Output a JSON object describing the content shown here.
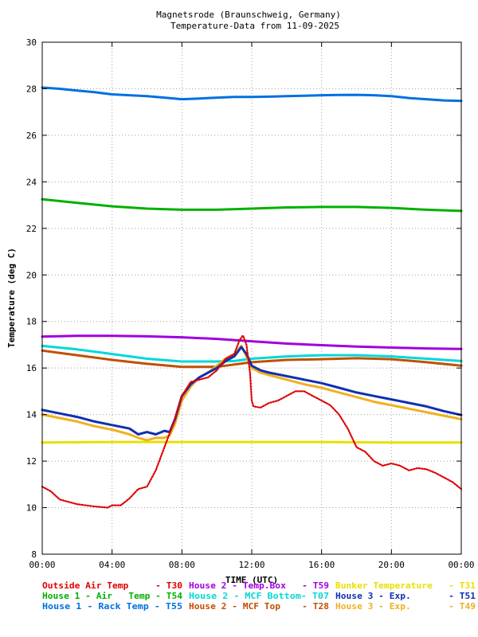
{
  "chart_data": {
    "type": "line",
    "title": "Magnetsrode (Braunschweig, Germany)",
    "subtitle": "Temperature-Data from 11-09-2025",
    "xlabel": "TIME (UTC)",
    "ylabel": "Temperature (deg C)",
    "xlim": [
      0,
      24
    ],
    "ylim": [
      8,
      30
    ],
    "x_ticks": [
      0,
      4,
      8,
      12,
      16,
      20,
      24
    ],
    "x_tick_labels": [
      "00:00",
      "04:00",
      "08:00",
      "12:00",
      "16:00",
      "20:00",
      "00:00"
    ],
    "y_ticks": [
      8,
      10,
      12,
      14,
      16,
      18,
      20,
      22,
      24,
      26,
      28,
      30
    ],
    "y_tick_labels": [
      "8",
      "10",
      "12",
      "14",
      "16",
      "18",
      "20",
      "22",
      "24",
      "26",
      "28",
      "30"
    ],
    "grid": true,
    "legend_position": "bottom",
    "series": [
      {
        "name": "Outside Air Temp",
        "id": "T30",
        "color": "#e00000",
        "dot": true,
        "points": [
          [
            0,
            10.9
          ],
          [
            0.5,
            10.7
          ],
          [
            1,
            10.35
          ],
          [
            2,
            10.15
          ],
          [
            3,
            10.05
          ],
          [
            3.75,
            10.0
          ],
          [
            4,
            10.1
          ],
          [
            4.5,
            10.1
          ],
          [
            5,
            10.4
          ],
          [
            5.5,
            10.8
          ],
          [
            6,
            10.9
          ],
          [
            6.5,
            11.6
          ],
          [
            7,
            12.6
          ],
          [
            7.5,
            13.6
          ],
          [
            8,
            14.8
          ],
          [
            8.5,
            15.4
          ],
          [
            9,
            15.5
          ],
          [
            9.5,
            15.6
          ],
          [
            10,
            15.9
          ],
          [
            10.5,
            16.4
          ],
          [
            11,
            16.6
          ],
          [
            11.3,
            17.2
          ],
          [
            11.5,
            17.4
          ],
          [
            11.7,
            17.0
          ],
          [
            11.9,
            15.8
          ],
          [
            12.0,
            14.6
          ],
          [
            12.1,
            14.35
          ],
          [
            12.5,
            14.3
          ],
          [
            13,
            14.5
          ],
          [
            13.5,
            14.6
          ],
          [
            14,
            14.8
          ],
          [
            14.5,
            15.0
          ],
          [
            15,
            15.0
          ],
          [
            15.5,
            14.8
          ],
          [
            16,
            14.6
          ],
          [
            16.5,
            14.4
          ],
          [
            17,
            14.0
          ],
          [
            17.5,
            13.4
          ],
          [
            18,
            12.6
          ],
          [
            18.5,
            12.4
          ],
          [
            19,
            12.0
          ],
          [
            19.5,
            11.8
          ],
          [
            20,
            11.9
          ],
          [
            20.5,
            11.8
          ],
          [
            21,
            11.6
          ],
          [
            21.5,
            11.7
          ],
          [
            22,
            11.65
          ],
          [
            22.5,
            11.5
          ],
          [
            23,
            11.3
          ],
          [
            23.5,
            11.1
          ],
          [
            24,
            10.8
          ]
        ]
      },
      {
        "name": "House 1 - Air  Temp",
        "id": "T54",
        "color": "#00b000",
        "dot": false,
        "points": [
          [
            0,
            23.25
          ],
          [
            2,
            23.1
          ],
          [
            4,
            22.95
          ],
          [
            6,
            22.85
          ],
          [
            8,
            22.8
          ],
          [
            10,
            22.8
          ],
          [
            12,
            22.85
          ],
          [
            14,
            22.9
          ],
          [
            16,
            22.92
          ],
          [
            18,
            22.92
          ],
          [
            20,
            22.88
          ],
          [
            22,
            22.8
          ],
          [
            24,
            22.75
          ]
        ]
      },
      {
        "name": "House 1 - Rack Temp",
        "id": "T55",
        "color": "#0070e0",
        "dot": false,
        "points": [
          [
            0,
            28.05
          ],
          [
            1,
            28.0
          ],
          [
            2,
            27.92
          ],
          [
            3,
            27.85
          ],
          [
            4,
            27.76
          ],
          [
            5,
            27.72
          ],
          [
            6,
            27.68
          ],
          [
            7,
            27.62
          ],
          [
            8,
            27.55
          ],
          [
            9,
            27.58
          ],
          [
            10,
            27.62
          ],
          [
            11,
            27.65
          ],
          [
            12,
            27.65
          ],
          [
            13,
            27.66
          ],
          [
            14,
            27.68
          ],
          [
            15,
            27.7
          ],
          [
            16,
            27.72
          ],
          [
            17,
            27.73
          ],
          [
            18,
            27.74
          ],
          [
            19,
            27.72
          ],
          [
            20,
            27.68
          ],
          [
            21,
            27.6
          ],
          [
            22,
            27.55
          ],
          [
            23,
            27.5
          ],
          [
            24,
            27.48
          ]
        ]
      },
      {
        "name": "House 2 - Temp.Box",
        "id": "T59",
        "color": "#a000e0",
        "dot": false,
        "points": [
          [
            0,
            17.35
          ],
          [
            2,
            17.38
          ],
          [
            4,
            17.38
          ],
          [
            6,
            17.36
          ],
          [
            8,
            17.32
          ],
          [
            10,
            17.25
          ],
          [
            12,
            17.15
          ],
          [
            14,
            17.05
          ],
          [
            16,
            16.98
          ],
          [
            18,
            16.92
          ],
          [
            20,
            16.88
          ],
          [
            22,
            16.84
          ],
          [
            24,
            16.82
          ]
        ]
      },
      {
        "name": "House 2 - MCF Bottom",
        "id": "T07",
        "color": "#00d8d8",
        "dot": false,
        "points": [
          [
            0,
            16.95
          ],
          [
            2,
            16.8
          ],
          [
            4,
            16.6
          ],
          [
            6,
            16.4
          ],
          [
            8,
            16.28
          ],
          [
            10,
            16.28
          ],
          [
            11,
            16.3
          ],
          [
            12,
            16.4
          ],
          [
            14,
            16.5
          ],
          [
            16,
            16.55
          ],
          [
            18,
            16.55
          ],
          [
            20,
            16.5
          ],
          [
            22,
            16.4
          ],
          [
            24,
            16.3
          ]
        ]
      },
      {
        "name": "Bunker Temperature",
        "id": "T31",
        "color": "#e8e000",
        "dot": false,
        "points": [
          [
            0,
            12.8
          ],
          [
            4,
            12.82
          ],
          [
            8,
            12.82
          ],
          [
            12,
            12.82
          ],
          [
            16,
            12.82
          ],
          [
            20,
            12.8
          ],
          [
            24,
            12.8
          ]
        ]
      },
      {
        "name": "House 2 - MCF Top",
        "id": "T28",
        "color": "#c05000",
        "dot": false,
        "points": [
          [
            0,
            16.75
          ],
          [
            2,
            16.55
          ],
          [
            4,
            16.35
          ],
          [
            6,
            16.18
          ],
          [
            8,
            16.05
          ],
          [
            10,
            16.05
          ],
          [
            12,
            16.25
          ],
          [
            14,
            16.35
          ],
          [
            16,
            16.38
          ],
          [
            18,
            16.42
          ],
          [
            20,
            16.38
          ],
          [
            22,
            16.25
          ],
          [
            24,
            16.1
          ]
        ]
      },
      {
        "name": "House 3 - Exp.",
        "id": "T51",
        "color": "#1030b0",
        "dot": false,
        "points": [
          [
            0,
            14.2
          ],
          [
            1,
            14.05
          ],
          [
            2,
            13.9
          ],
          [
            3,
            13.7
          ],
          [
            4,
            13.55
          ],
          [
            5,
            13.4
          ],
          [
            5.5,
            13.15
          ],
          [
            6,
            13.25
          ],
          [
            6.5,
            13.15
          ],
          [
            7,
            13.3
          ],
          [
            7.3,
            13.25
          ],
          [
            7.6,
            13.8
          ],
          [
            8,
            14.8
          ],
          [
            8.5,
            15.3
          ],
          [
            9,
            15.6
          ],
          [
            9.5,
            15.8
          ],
          [
            10,
            16.0
          ],
          [
            10.5,
            16.3
          ],
          [
            11,
            16.5
          ],
          [
            11.4,
            16.9
          ],
          [
            11.7,
            16.6
          ],
          [
            12,
            16.1
          ],
          [
            12.5,
            15.9
          ],
          [
            13,
            15.8
          ],
          [
            14,
            15.65
          ],
          [
            15,
            15.5
          ],
          [
            16,
            15.35
          ],
          [
            17,
            15.15
          ],
          [
            18,
            14.95
          ],
          [
            19,
            14.8
          ],
          [
            20,
            14.65
          ],
          [
            21,
            14.5
          ],
          [
            22,
            14.35
          ],
          [
            23,
            14.15
          ],
          [
            24,
            13.98
          ]
        ]
      },
      {
        "name": "House 3 - Exp.",
        "id": "T49",
        "color": "#f0b020",
        "dot": false,
        "points": [
          [
            0,
            14.0
          ],
          [
            1,
            13.85
          ],
          [
            2,
            13.7
          ],
          [
            3,
            13.5
          ],
          [
            4,
            13.35
          ],
          [
            5,
            13.15
          ],
          [
            5.5,
            13.0
          ],
          [
            6,
            12.9
          ],
          [
            6.5,
            13.0
          ],
          [
            7,
            13.0
          ],
          [
            7.3,
            13.1
          ],
          [
            7.6,
            13.6
          ],
          [
            8,
            14.6
          ],
          [
            8.5,
            15.2
          ],
          [
            9,
            15.6
          ],
          [
            9.5,
            15.8
          ],
          [
            10,
            16.1
          ],
          [
            10.5,
            16.4
          ],
          [
            11,
            16.6
          ],
          [
            11.4,
            16.95
          ],
          [
            11.7,
            16.5
          ],
          [
            12,
            16.0
          ],
          [
            12.5,
            15.8
          ],
          [
            13,
            15.7
          ],
          [
            14,
            15.5
          ],
          [
            15,
            15.3
          ],
          [
            16,
            15.15
          ],
          [
            17,
            14.95
          ],
          [
            18,
            14.75
          ],
          [
            19,
            14.55
          ],
          [
            20,
            14.4
          ],
          [
            21,
            14.25
          ],
          [
            22,
            14.1
          ],
          [
            23,
            13.95
          ],
          [
            24,
            13.8
          ]
        ]
      }
    ]
  },
  "legend": [
    {
      "label": "Outside Air Temp     - T30",
      "color": "#e00000"
    },
    {
      "label": "House 2 - Temp.Box   - T59",
      "color": "#a000e0"
    },
    {
      "label": "Bunker Temperature   - T31",
      "color": "#e8e000"
    },
    {
      "label": "House 1 - Air   Temp - T54",
      "color": "#00b000"
    },
    {
      "label": "House 2 - MCF Bottom- T07",
      "color": "#00d8d8"
    },
    {
      "label": "House 3 - Exp.       - T51",
      "color": "#1030b0"
    },
    {
      "label": "House 1 - Rack Temp - T55",
      "color": "#0070e0"
    },
    {
      "label": "House 2 - MCF Top    - T28",
      "color": "#c05000"
    },
    {
      "label": "House 3 - Exp.       - T49",
      "color": "#f0b020"
    }
  ]
}
